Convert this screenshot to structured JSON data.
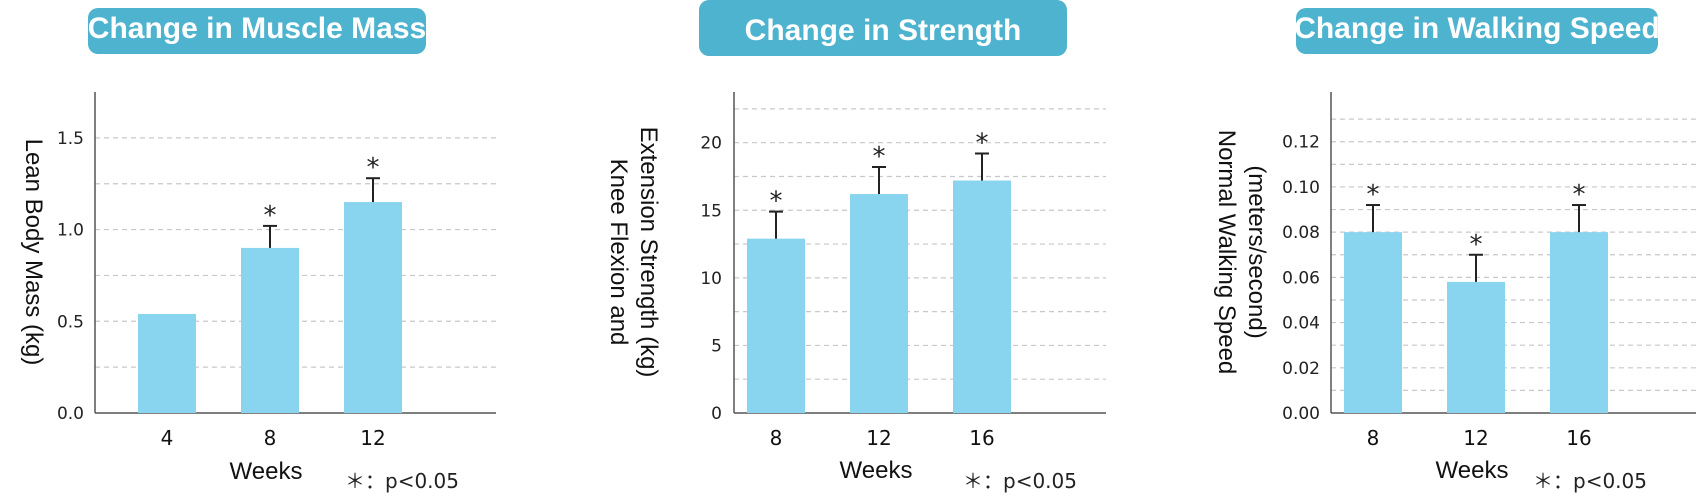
{
  "chart_data": [
    {
      "type": "bar",
      "title": "Change in Muscle Mass",
      "categories": [
        "4",
        "8",
        "12"
      ],
      "values": [
        0.54,
        0.9,
        1.15
      ],
      "errors": [
        null,
        0.12,
        0.13
      ],
      "significant": [
        false,
        true,
        true
      ],
      "significance_marker": "*",
      "xlabel": "Weeks",
      "ylabel": "Lean Body Mass (kg)",
      "ylim": [
        0,
        1.75
      ],
      "yticks": [
        0.0,
        0.5,
        1.0,
        1.5
      ],
      "ytick_labels": [
        "0.0",
        "0.5",
        "1.0",
        "1.5"
      ],
      "footnote": "＊：p<0.05",
      "grid": true
    },
    {
      "type": "bar",
      "title": "Change in Strength",
      "categories": [
        "8",
        "12",
        "16"
      ],
      "values": [
        12.9,
        16.2,
        17.2
      ],
      "errors": [
        2.0,
        2.0,
        2.0
      ],
      "significant": [
        true,
        true,
        true
      ],
      "significance_marker": "*",
      "xlabel": "Weeks",
      "ylabel": "Knee Flexion and\nExtension Strength (kg)",
      "ylim": [
        0,
        23.75
      ],
      "yticks": [
        0,
        5,
        10,
        15,
        20
      ],
      "ytick_labels": [
        "0",
        "5",
        "10",
        "15",
        "20"
      ],
      "footnote": "＊：p<0.05",
      "grid": true
    },
    {
      "type": "bar",
      "title": "Change in Walking Speed",
      "categories": [
        "8",
        "12",
        "16"
      ],
      "values": [
        0.08,
        0.058,
        0.08
      ],
      "errors": [
        0.012,
        0.012,
        0.012
      ],
      "significant": [
        true,
        true,
        true
      ],
      "significance_marker": "*",
      "xlabel": "Weeks",
      "ylabel": "Normal Walking Speed\n(meters/second)",
      "ylim": [
        0,
        0.142
      ],
      "yticks": [
        0.0,
        0.02,
        0.04,
        0.06,
        0.08,
        0.1,
        0.12
      ],
      "ytick_labels": [
        "0.00",
        "0.02",
        "0.04",
        "0.06",
        "0.08",
        "0.10",
        "0.12"
      ],
      "footnote": "＊：p<0.05",
      "grid": true
    }
  ],
  "colors": {
    "title_background": "#4db3cf",
    "title_text": "#ffffff",
    "bar": "#89d4ef",
    "grid": "#c8c8c8",
    "axis": "#555555"
  }
}
